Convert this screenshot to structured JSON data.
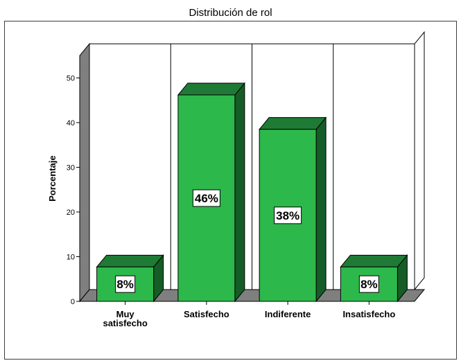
{
  "chart_data": {
    "type": "bar",
    "title": "Distribución de rol",
    "xlabel": "",
    "ylabel": "Porcentaje",
    "categories": [
      "Muy satisfecho",
      "Satisfecho",
      "Indiferente",
      "Insatisfecho"
    ],
    "category_lines": [
      [
        "Muy",
        "satisfecho"
      ],
      [
        "Satisfecho"
      ],
      [
        "Indiferente"
      ],
      [
        "Insatisfecho"
      ]
    ],
    "values": [
      7.7,
      46.2,
      38.5,
      7.7
    ],
    "data_labels": [
      "8%",
      "46%",
      "38%",
      "8%"
    ],
    "yticks": [
      "0",
      "10",
      "20",
      "30",
      "40",
      "50"
    ],
    "ylim": [
      0,
      50
    ],
    "grid": false,
    "three_d": true,
    "colors": {
      "bar_front": "#2db84b",
      "bar_top": "#1e7a34",
      "bar_side": "#165c27",
      "floor": "#7f7f7f",
      "left_wall": "#7f7f7f"
    }
  }
}
